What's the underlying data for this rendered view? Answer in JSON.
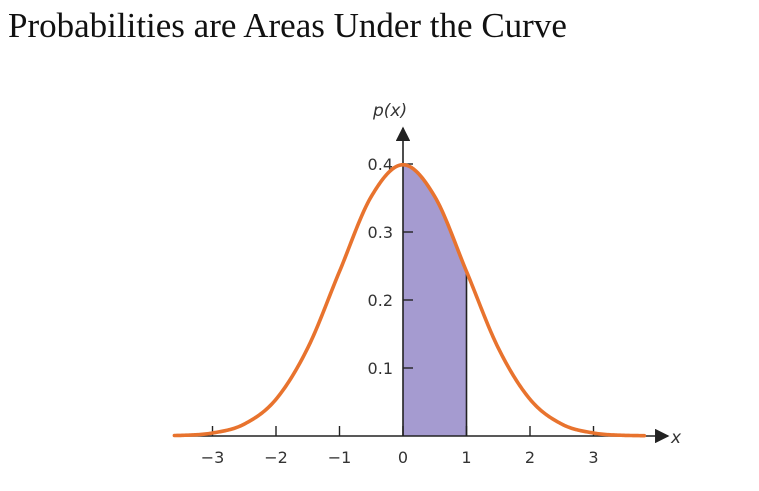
{
  "slide": {
    "title": "Probabilities are Areas Under the Curve"
  },
  "chart_data": {
    "type": "area",
    "title": "",
    "xlabel": "x",
    "ylabel": "p(x)",
    "xlim": [
      -3.6,
      3.8
    ],
    "ylim": [
      0,
      0.4
    ],
    "grid": false,
    "legend": "none",
    "x_ticks": [
      -3,
      -2,
      -1,
      0,
      1,
      2,
      3
    ],
    "x_tick_labels": [
      "−3",
      "−2",
      "−1",
      "0",
      "1",
      "2",
      "3"
    ],
    "y_ticks": [
      0.1,
      0.2,
      0.3,
      0.4
    ],
    "y_tick_labels": [
      "0.1",
      "0.2",
      "0.3",
      "0.4"
    ],
    "series": [
      {
        "x": [
          -3.5,
          -3.0,
          -2.5,
          -2.0,
          -1.5,
          -1.0,
          -0.5,
          0.0,
          0.5,
          1.0,
          1.5,
          2.0,
          2.5,
          3.0,
          3.5
        ],
        "values": [
          0.0009,
          0.0044,
          0.0175,
          0.054,
          0.1295,
          0.242,
          0.3521,
          0.3989,
          0.3521,
          0.242,
          0.1295,
          0.054,
          0.0175,
          0.0044,
          0.0009
        ]
      }
    ],
    "shaded_region": {
      "from": 0,
      "to": 1
    },
    "colors": {
      "curve": "#e8732e",
      "shade": "#a59bd0",
      "axis": "#222222"
    }
  }
}
